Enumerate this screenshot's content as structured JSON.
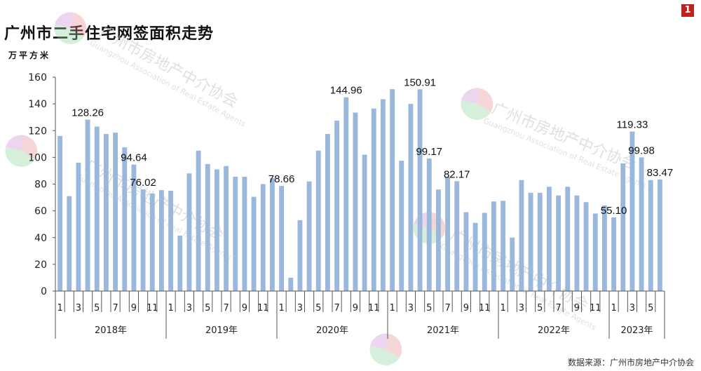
{
  "page_number": "1",
  "title": "广州市二手住宅网签面积走势",
  "unit_label": "万平方米",
  "source": "数据来源：广州市房地产中介协会",
  "watermark": {
    "text": "广州市房地产中介协会",
    "subtext": "Guangzhou Association of Real Estate Agents"
  },
  "colors": {
    "bar": "#9ab8dc",
    "axis": "#555555",
    "grid": "#e0e0e0",
    "badge": "#c0211d"
  },
  "chart_data": {
    "type": "bar",
    "title": "广州市二手住宅网签面积走势",
    "ylabel": "万平方米",
    "ylim": [
      0,
      160
    ],
    "yticks": [
      0,
      20,
      40,
      60,
      80,
      100,
      120,
      140,
      160
    ],
    "grid": false,
    "years": [
      {
        "label": "2018年",
        "months": 12
      },
      {
        "label": "2019年",
        "months": 12
      },
      {
        "label": "2020年",
        "months": 12
      },
      {
        "label": "2021年",
        "months": 12
      },
      {
        "label": "2022年",
        "months": 12
      },
      {
        "label": "2023年",
        "months": 6
      }
    ],
    "month_tick_labels": [
      "1",
      "",
      "3",
      "",
      "5",
      "",
      "7",
      "",
      "9",
      "",
      "11",
      ""
    ],
    "values": [
      116,
      71,
      96,
      128.26,
      123,
      117.5,
      118.5,
      107.5,
      94.64,
      76.02,
      73,
      75.5,
      75,
      41.5,
      88,
      105,
      95,
      91,
      93.5,
      85.5,
      85.5,
      70.5,
      80,
      84.5,
      78.66,
      10,
      53,
      82,
      105,
      117.5,
      127.5,
      144.96,
      133.5,
      102,
      136.5,
      143.5,
      151,
      97.5,
      140,
      150.91,
      99.17,
      76,
      85.5,
      82.17,
      59,
      51,
      58.5,
      67,
      67.5,
      40,
      83,
      73.5,
      73.5,
      78,
      71.5,
      78,
      71.5,
      66.5,
      58,
      64,
      55.1,
      95.5,
      119.33,
      99.98,
      83,
      83.47
    ],
    "data_labels": [
      {
        "index": 3,
        "text": "128.26"
      },
      {
        "index": 8,
        "text": "94.64"
      },
      {
        "index": 9,
        "text": "76.02"
      },
      {
        "index": 24,
        "text": "78.66"
      },
      {
        "index": 31,
        "text": "144.96"
      },
      {
        "index": 39,
        "text": "150.91"
      },
      {
        "index": 40,
        "text": "99.17"
      },
      {
        "index": 43,
        "text": "82.17"
      },
      {
        "index": 60,
        "text": "55.10"
      },
      {
        "index": 62,
        "text": "119.33"
      },
      {
        "index": 63,
        "text": "99.98"
      },
      {
        "index": 65,
        "text": "83.47"
      }
    ]
  }
}
